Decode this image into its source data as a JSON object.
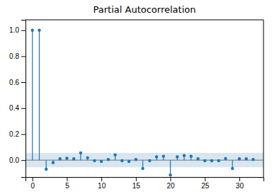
{
  "chart_data": {
    "type": "stem",
    "title": "Partial Autocorrelation",
    "x": [
      0,
      1,
      2,
      3,
      4,
      5,
      6,
      7,
      8,
      9,
      10,
      11,
      12,
      13,
      14,
      15,
      16,
      17,
      18,
      19,
      20,
      21,
      22,
      23,
      24,
      25,
      26,
      27,
      28,
      29,
      30,
      31,
      32
    ],
    "values": [
      1.0,
      1.0,
      -0.07,
      -0.02,
      0.01,
      0.015,
      0.01,
      0.055,
      0.018,
      -0.005,
      -0.01,
      0.005,
      0.04,
      -0.005,
      -0.01,
      0.005,
      -0.065,
      -0.005,
      0.025,
      0.03,
      -0.115,
      0.025,
      0.035,
      0.03,
      0.01,
      -0.005,
      -0.005,
      -0.005,
      0.012,
      -0.065,
      0.01,
      0.01,
      0.005
    ],
    "confidence": 0.055,
    "xlim": [
      -1,
      33.5
    ],
    "ylim": [
      -0.13,
      1.08
    ],
    "xticks": [
      0,
      5,
      10,
      15,
      20,
      25,
      30
    ],
    "yticks": [
      {
        "value": 0,
        "label": "0.0"
      },
      0.2,
      0.4,
      0.6,
      0.8,
      {
        "value": 1,
        "label": "1.0"
      }
    ],
    "grid": false
  }
}
